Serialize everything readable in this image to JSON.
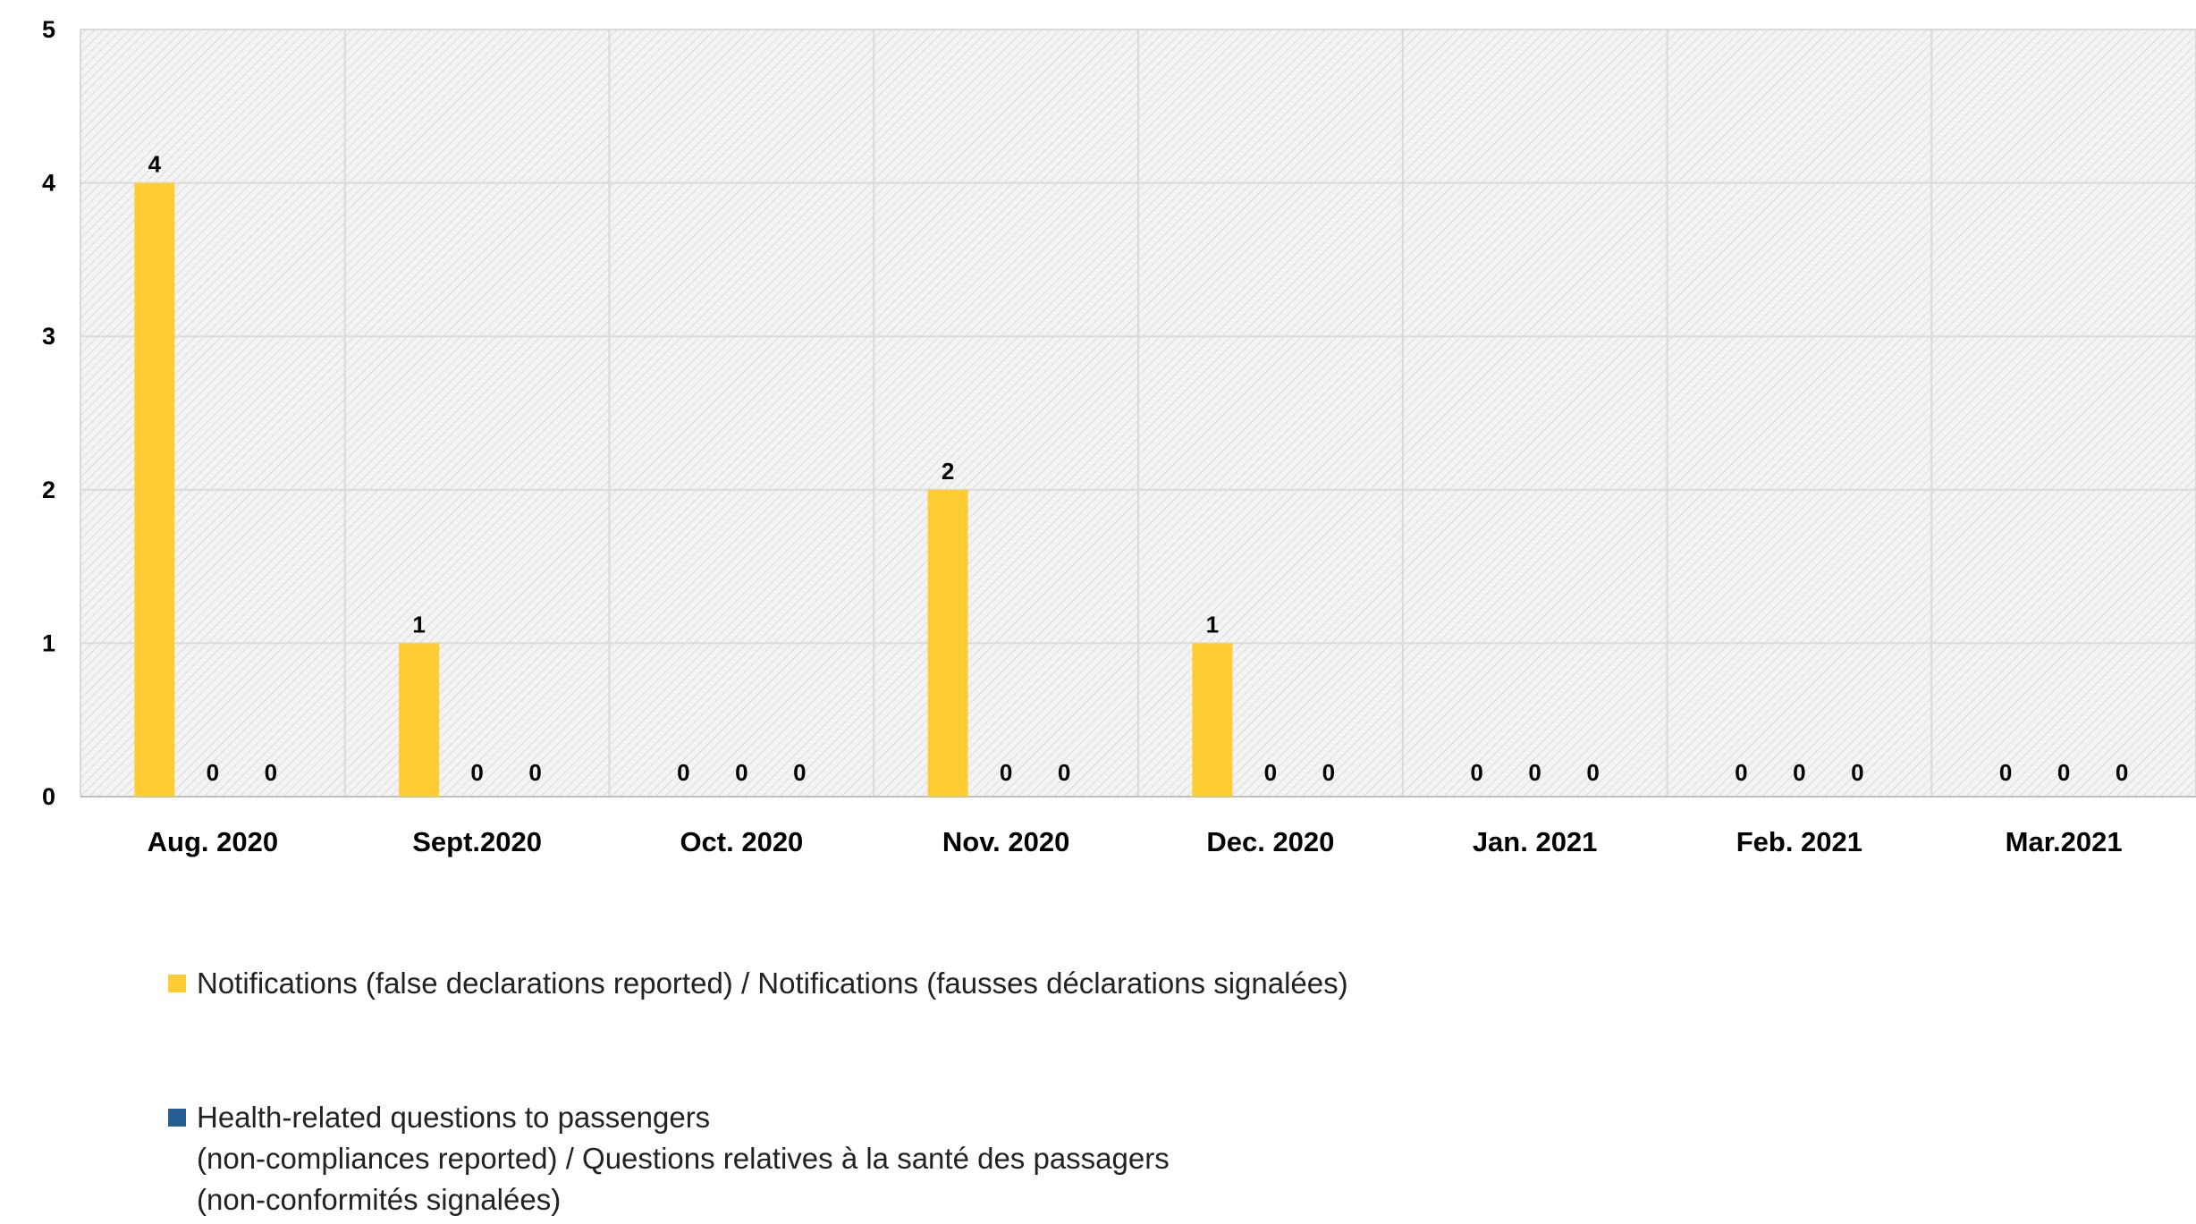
{
  "chart_data": {
    "type": "bar",
    "categories": [
      "Aug. 2020",
      "Sept.2020",
      "Oct. 2020",
      "Nov. 2020",
      "Dec. 2020",
      "Jan. 2021",
      "Feb. 2021",
      "Mar.2021"
    ],
    "series": [
      {
        "name": "Notifications (false declarations reported) / Notifications (fausses déclarations signalées)",
        "color": "#FFCC33",
        "values": [
          4,
          1,
          0,
          2,
          1,
          0,
          0,
          0
        ]
      },
      {
        "name": "Health-related questions to passengers\n(non-compliances reported) / Questions relatives à la santé des passagers\n(non-conformités signalées)",
        "color": "#255E91",
        "values": [
          0,
          0,
          0,
          0,
          0,
          0,
          0,
          0
        ]
      },
      {
        "name": "",
        "color": "#A5A5A5",
        "values": [
          0,
          0,
          0,
          0,
          0,
          0,
          0,
          0
        ]
      }
    ],
    "ylim": [
      0,
      5
    ],
    "yticks": [
      0,
      1,
      2,
      3,
      4,
      5
    ],
    "grid": true,
    "legend_position": "bottom",
    "data_labels": true,
    "title": "",
    "xlabel": "",
    "ylabel": ""
  }
}
